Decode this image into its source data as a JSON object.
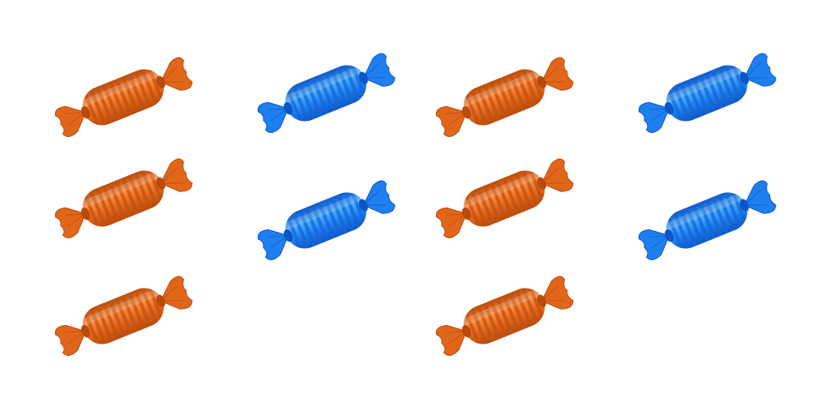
{
  "candies": [
    {
      "color": "orange"
    },
    {
      "color": "orange"
    },
    {
      "color": "orange"
    },
    {
      "color": "blue"
    },
    {
      "color": "blue"
    },
    {
      "color": "orange"
    },
    {
      "color": "orange"
    },
    {
      "color": "orange"
    },
    {
      "color": "blue"
    },
    {
      "color": "blue"
    }
  ],
  "palette": {
    "orange": {
      "base": "#e2661a",
      "light": "#ff8a3d",
      "dark": "#b84a0c",
      "stripe": "#c0520f"
    },
    "blue": {
      "base": "#1e7ff0",
      "light": "#47b0ff",
      "dark": "#0d55c6",
      "stripe": "#1466d6"
    }
  },
  "icon": "wrapped-candy-icon"
}
